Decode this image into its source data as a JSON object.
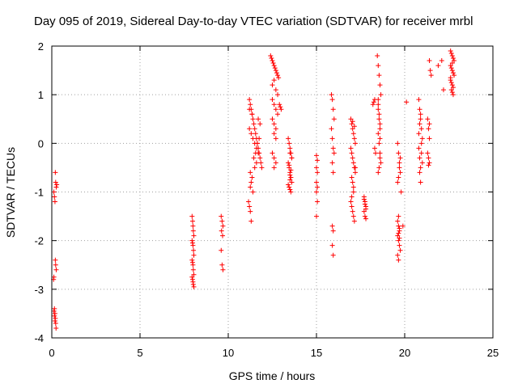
{
  "chart_data": {
    "type": "scatter",
    "title": "Day 095 of 2019, Sidereal Day-to-day VTEC variation (SDTVAR) for receiver mrbl",
    "xlabel": "GPS time / hours",
    "ylabel": "SDTVAR / TECUs",
    "xlim": [
      0,
      25
    ],
    "ylim": [
      -4,
      2
    ],
    "xticks": [
      "0",
      "5",
      "10",
      "15",
      "20",
      "25"
    ],
    "yticks": [
      "-4",
      "-3",
      "-2",
      "-1",
      "0",
      "1",
      "2"
    ],
    "grid": true,
    "marker": "+",
    "color": "#ff0000",
    "series": [
      {
        "name": "SDTVAR",
        "x": [
          0.2,
          0.22,
          0.25,
          0.28,
          0.12,
          0.15,
          0.18,
          0.2,
          0.22,
          0.25,
          0.1,
          0.12,
          0.15,
          0.18,
          0.2,
          0.22,
          0.24,
          0.12,
          0.15,
          0.18,
          7.95,
          7.98,
          8.0,
          8.02,
          8.05,
          7.95,
          7.98,
          8.0,
          8.03,
          8.05,
          7.95,
          7.98,
          8.0,
          8.02,
          8.05,
          7.95,
          7.98,
          8.0,
          8.02,
          8.05,
          9.6,
          9.65,
          9.7,
          9.62,
          9.68,
          9.6,
          9.65,
          9.7,
          11.2,
          11.25,
          11.3,
          11.35,
          11.4,
          11.45,
          11.5,
          11.55,
          11.6,
          11.65,
          11.7,
          11.75,
          11.8,
          11.85,
          11.9,
          11.2,
          11.3,
          11.4,
          11.5,
          11.6,
          11.7,
          11.8,
          11.25,
          11.35,
          11.45,
          11.55,
          11.65,
          11.75,
          11.3,
          11.5,
          11.7,
          11.25,
          11.4,
          11.6,
          11.15,
          11.2,
          11.25,
          11.3,
          11.35,
          11.2,
          12.4,
          12.45,
          12.5,
          12.55,
          12.6,
          12.65,
          12.7,
          12.75,
          12.8,
          12.85,
          12.5,
          12.6,
          12.7,
          12.8,
          12.5,
          12.6,
          12.7,
          12.8,
          12.5,
          12.6,
          12.7,
          12.9,
          12.95,
          13.0,
          12.6,
          12.7,
          12.5,
          12.6,
          12.7,
          12.6,
          13.4,
          13.45,
          13.5,
          13.55,
          13.6,
          13.4,
          13.45,
          13.5,
          13.55,
          13.6,
          13.4,
          13.45,
          13.5,
          13.55,
          13.6,
          13.5,
          13.45,
          13.55,
          13.5,
          13.5,
          15.0,
          15.05,
          15.0,
          15.05,
          15.0,
          15.05,
          15.0,
          15.05,
          15.0,
          15.85,
          15.9,
          15.95,
          16.0,
          15.85,
          15.9,
          15.95,
          16.0,
          15.9,
          15.95,
          15.9,
          15.95,
          15.9,
          15.95,
          16.95,
          17.0,
          17.05,
          17.1,
          17.15,
          17.2,
          16.95,
          17.0,
          17.05,
          17.1,
          17.15,
          17.2,
          17.0,
          17.05,
          17.1,
          16.95,
          17.0,
          17.05,
          17.1,
          17.15,
          17.0,
          17.1,
          17.2,
          17.05,
          17.15,
          17.7,
          17.75,
          17.8,
          17.7,
          17.75,
          17.8,
          17.7,
          17.75,
          17.8,
          18.2,
          18.25,
          18.3,
          18.45,
          18.5,
          18.55,
          18.6,
          18.65,
          18.5,
          18.55,
          18.6,
          18.5,
          18.55,
          18.6,
          18.65,
          18.5,
          18.55,
          18.6,
          18.5,
          18.55,
          18.6,
          18.3,
          18.35,
          18.5,
          18.6,
          19.6,
          19.65,
          19.7,
          19.75,
          19.6,
          19.65,
          19.7,
          19.75,
          19.6,
          19.65,
          19.7,
          19.6,
          19.65,
          19.7,
          19.75,
          19.6,
          19.65,
          19.7,
          19.65,
          19.7,
          19.8,
          19.9,
          20.1,
          19.65,
          20.8,
          20.85,
          20.9,
          20.95,
          21.0,
          20.8,
          20.85,
          20.9,
          20.95,
          20.8,
          20.85,
          20.9,
          20.95,
          21.0,
          20.85,
          20.9,
          21.3,
          21.35,
          21.4,
          21.35,
          21.3,
          21.4,
          21.35,
          21.4,
          21.4,
          21.45,
          21.5,
          21.9,
          22.1,
          22.2,
          22.6,
          22.65,
          22.7,
          22.75,
          22.8,
          22.6,
          22.65,
          22.7,
          22.75,
          22.8,
          22.6,
          22.65,
          22.7,
          22.75,
          22.65,
          22.7,
          22.75,
          22.7,
          22.6
        ],
        "y": [
          -0.6,
          -0.8,
          -0.9,
          -0.85,
          -1.0,
          -1.1,
          -1.2,
          -2.4,
          -2.5,
          -2.6,
          -2.8,
          -2.75,
          -3.4,
          -3.5,
          -3.6,
          -3.7,
          -3.8,
          -3.45,
          -3.55,
          -3.65,
          -1.5,
          -1.6,
          -1.7,
          -1.8,
          -1.9,
          -2.0,
          -2.05,
          -2.1,
          -2.2,
          -2.3,
          -2.4,
          -2.45,
          -2.5,
          -2.6,
          -2.7,
          -2.75,
          -2.8,
          -2.85,
          -2.9,
          -2.95,
          -1.5,
          -1.6,
          -1.7,
          -1.8,
          -1.9,
          -2.2,
          -2.5,
          -2.6,
          0.9,
          0.8,
          0.7,
          0.6,
          0.5,
          0.4,
          0.3,
          0.2,
          0.1,
          0.0,
          -0.1,
          -0.2,
          -0.3,
          -0.4,
          -0.5,
          0.3,
          0.2,
          0.1,
          0.0,
          -0.1,
          -0.2,
          0.4,
          -0.6,
          -0.7,
          -0.3,
          -0.2,
          0.0,
          0.1,
          -0.8,
          -0.5,
          0.5,
          -0.9,
          -1.0,
          -0.4,
          -1.2,
          -1.3,
          -1.4,
          -1.6,
          0.6,
          0.7,
          1.8,
          1.75,
          1.7,
          1.65,
          1.6,
          1.55,
          1.5,
          1.45,
          1.4,
          1.35,
          1.2,
          1.3,
          1.1,
          1.0,
          0.9,
          0.8,
          0.7,
          0.6,
          0.5,
          0.4,
          0.3,
          0.8,
          0.75,
          0.7,
          0.2,
          0.1,
          -0.2,
          -0.3,
          -0.4,
          -0.5,
          0.1,
          0.0,
          -0.1,
          -0.2,
          -0.3,
          -0.4,
          -0.5,
          -0.6,
          -0.7,
          -0.8,
          -0.85,
          -0.9,
          -0.95,
          -1.0,
          -0.3,
          -0.2,
          -0.45,
          -0.55,
          -0.65,
          -0.75,
          -0.25,
          -0.35,
          -0.5,
          -0.6,
          -0.8,
          -0.9,
          -1.0,
          -1.2,
          -1.5,
          1.0,
          0.9,
          0.7,
          0.5,
          0.3,
          0.1,
          -0.1,
          -0.2,
          -0.4,
          -0.6,
          -1.7,
          -1.8,
          -2.1,
          -2.3,
          0.5,
          0.4,
          0.3,
          0.2,
          0.1,
          0.0,
          -0.1,
          -0.2,
          -0.3,
          -0.4,
          -0.5,
          -0.6,
          -0.7,
          -0.8,
          -1.0,
          -1.2,
          -1.3,
          -1.4,
          -1.5,
          -1.6,
          -1.1,
          -0.9,
          -0.5,
          0.45,
          0.35,
          -1.1,
          -1.2,
          -1.3,
          -1.4,
          -1.5,
          -1.55,
          -1.15,
          -1.25,
          -1.35,
          0.8,
          0.85,
          0.9,
          1.8,
          1.6,
          1.4,
          1.2,
          1.0,
          0.8,
          0.6,
          0.4,
          0.2,
          0.0,
          -0.2,
          -0.4,
          -0.6,
          -0.5,
          -0.3,
          0.7,
          0.5,
          0.3,
          -0.1,
          -0.2,
          0.9,
          0.1,
          0.0,
          -0.2,
          -0.4,
          -0.6,
          -0.8,
          -0.7,
          -0.5,
          -0.3,
          -1.6,
          -1.7,
          -1.8,
          -1.9,
          -2.0,
          -2.1,
          -2.2,
          -2.3,
          -2.4,
          -1.75,
          -1.85,
          -1.95,
          -1.0,
          -1.7,
          0.85,
          -1.5,
          0.9,
          0.7,
          0.5,
          0.3,
          0.1,
          -0.1,
          -0.3,
          -0.5,
          -0.2,
          0.2,
          0.4,
          0.6,
          0.0,
          -0.4,
          -0.6,
          -0.8,
          -0.2,
          -0.3,
          -0.4,
          -0.45,
          0.5,
          0.4,
          0.3,
          0.1,
          1.7,
          1.5,
          1.4,
          1.6,
          1.7,
          1.1,
          1.9,
          1.85,
          1.8,
          1.75,
          1.7,
          1.6,
          1.55,
          1.5,
          1.45,
          1.4,
          1.3,
          1.25,
          1.2,
          1.15,
          1.1,
          1.05,
          1.0,
          1.65,
          1.35
        ]
      }
    ]
  }
}
